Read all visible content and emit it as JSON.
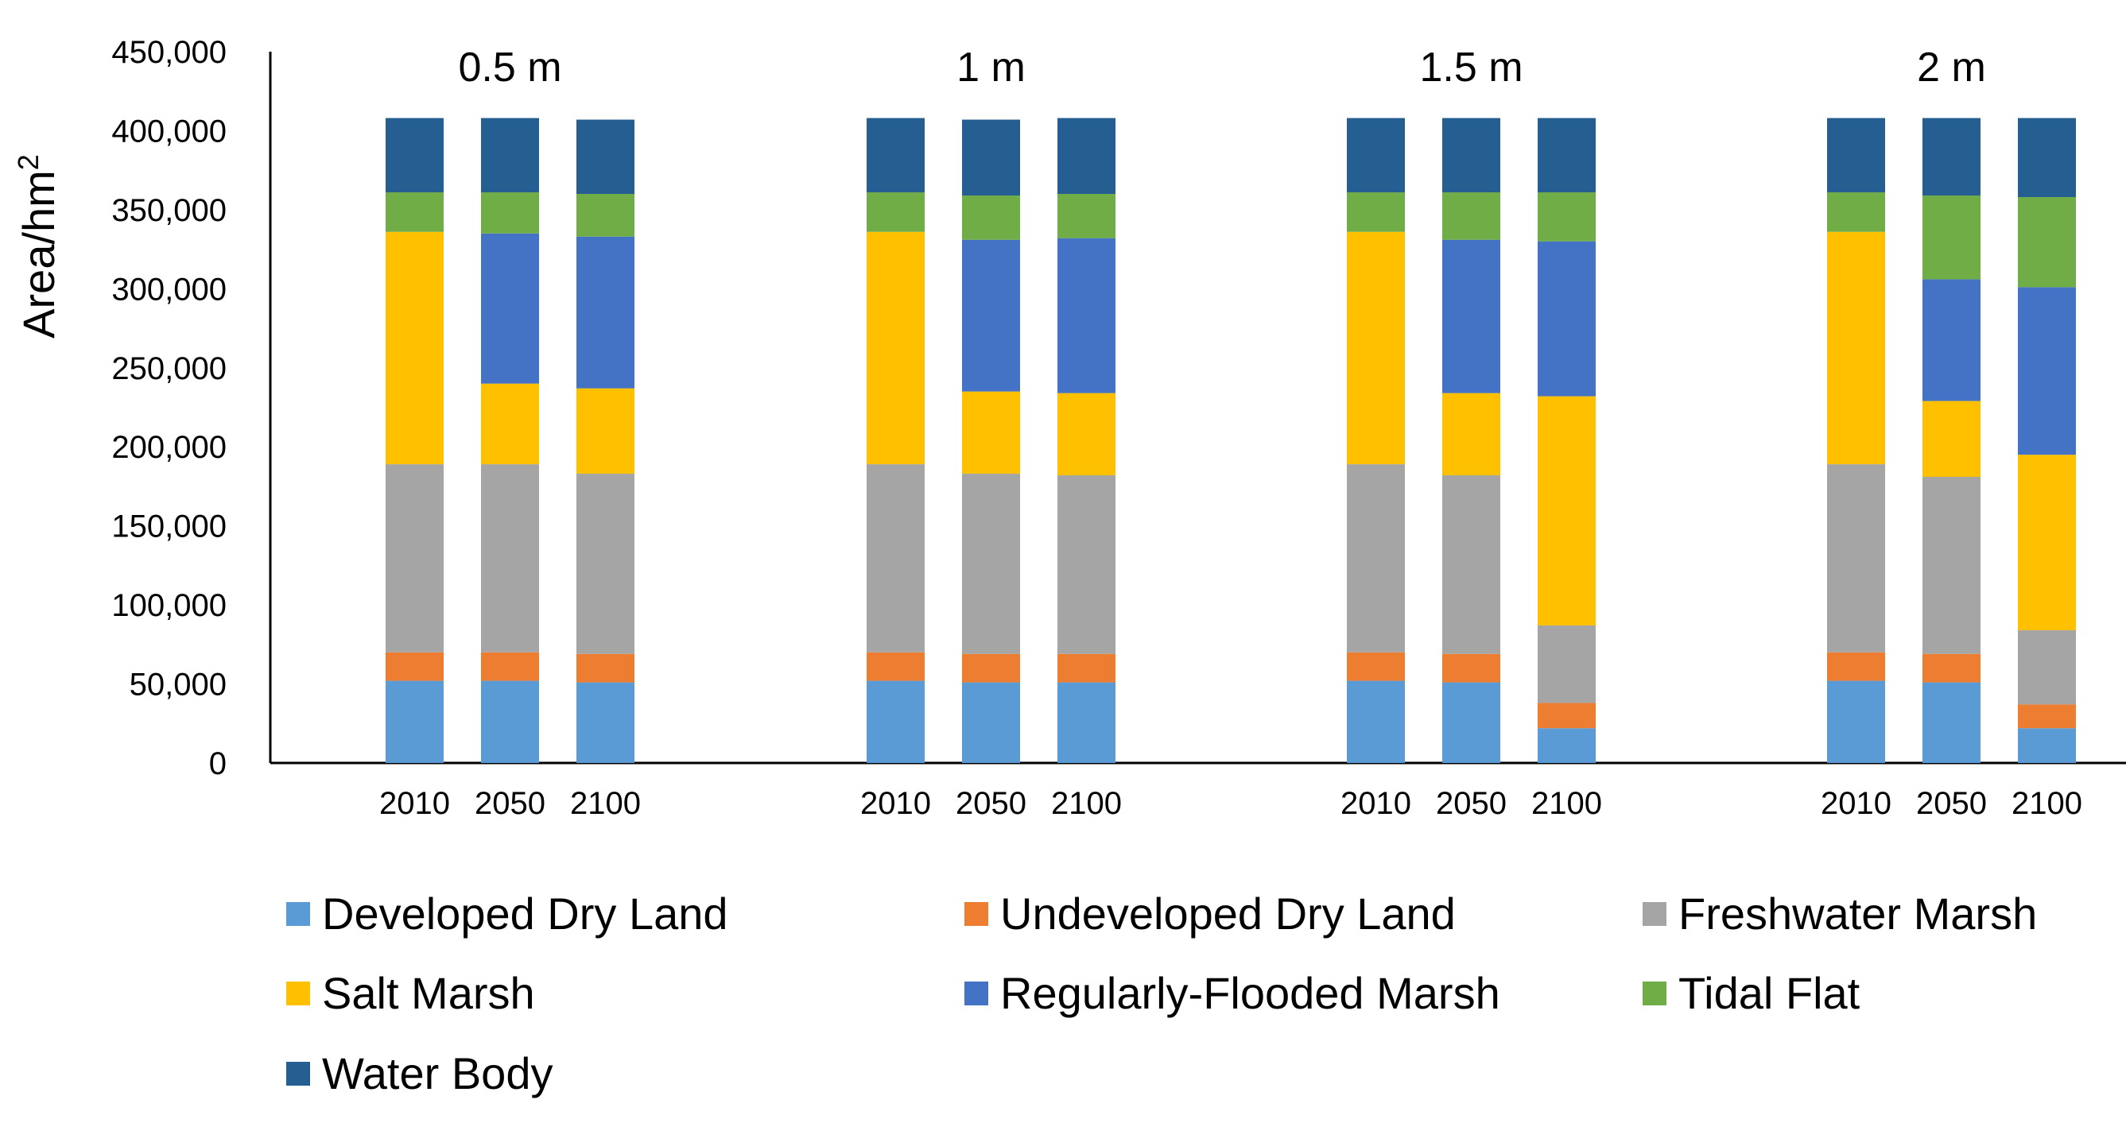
{
  "chart_data": {
    "type": "bar",
    "stacked": true,
    "ylabel": "Area/hm",
    "ylabel_superscript": "2",
    "ylim": [
      0,
      450000
    ],
    "yticks": [
      0,
      50000,
      100000,
      150000,
      200000,
      250000,
      300000,
      350000,
      400000,
      450000
    ],
    "ytick_labels": [
      "0",
      "50,000",
      "100,000",
      "150,000",
      "200,000",
      "250,000",
      "300,000",
      "350,000",
      "400,000",
      "450,000"
    ],
    "groups": [
      {
        "title": "0.5 m",
        "categories": [
          "2010",
          "2050",
          "2100"
        ]
      },
      {
        "title": "1 m",
        "categories": [
          "2010",
          "2050",
          "2100"
        ]
      },
      {
        "title": "1.5 m",
        "categories": [
          "2010",
          "2050",
          "2100"
        ]
      },
      {
        "title": "2 m",
        "categories": [
          "2010",
          "2050",
          "2100"
        ]
      }
    ],
    "series": [
      {
        "name": "Developed Dry Land",
        "color": "#5b9bd5",
        "values": [
          52000,
          52000,
          51000,
          52000,
          51000,
          51000,
          52000,
          51000,
          22000,
          52000,
          51000,
          22000
        ]
      },
      {
        "name": "Undeveloped Dry Land",
        "color": "#ed7d31",
        "values": [
          18000,
          18000,
          18000,
          18000,
          18000,
          18000,
          18000,
          18000,
          16000,
          18000,
          18000,
          15000
        ]
      },
      {
        "name": "Freshwater Marsh",
        "color": "#a5a5a5",
        "values": [
          119000,
          119000,
          114000,
          119000,
          114000,
          113000,
          119000,
          113000,
          49000,
          119000,
          112000,
          47000
        ]
      },
      {
        "name": "Salt Marsh",
        "color": "#ffc000",
        "values": [
          147000,
          51000,
          54000,
          147000,
          52000,
          52000,
          147000,
          52000,
          145000,
          147000,
          48000,
          111000
        ]
      },
      {
        "name": "Regularly-Flooded Marsh",
        "color": "#4472c4",
        "values": [
          0,
          95000,
          96000,
          0,
          96000,
          98000,
          0,
          97000,
          98000,
          0,
          77000,
          106000
        ]
      },
      {
        "name": "Tidal Flat",
        "color": "#70ad47",
        "values": [
          25000,
          26000,
          27000,
          25000,
          28000,
          28000,
          25000,
          30000,
          31000,
          25000,
          53000,
          57000
        ]
      },
      {
        "name": "Water Body",
        "color": "#255e91",
        "values": [
          47000,
          47000,
          47000,
          47000,
          48000,
          48000,
          47000,
          47000,
          47000,
          47000,
          49000,
          50000
        ]
      }
    ],
    "legend": "bottom"
  }
}
